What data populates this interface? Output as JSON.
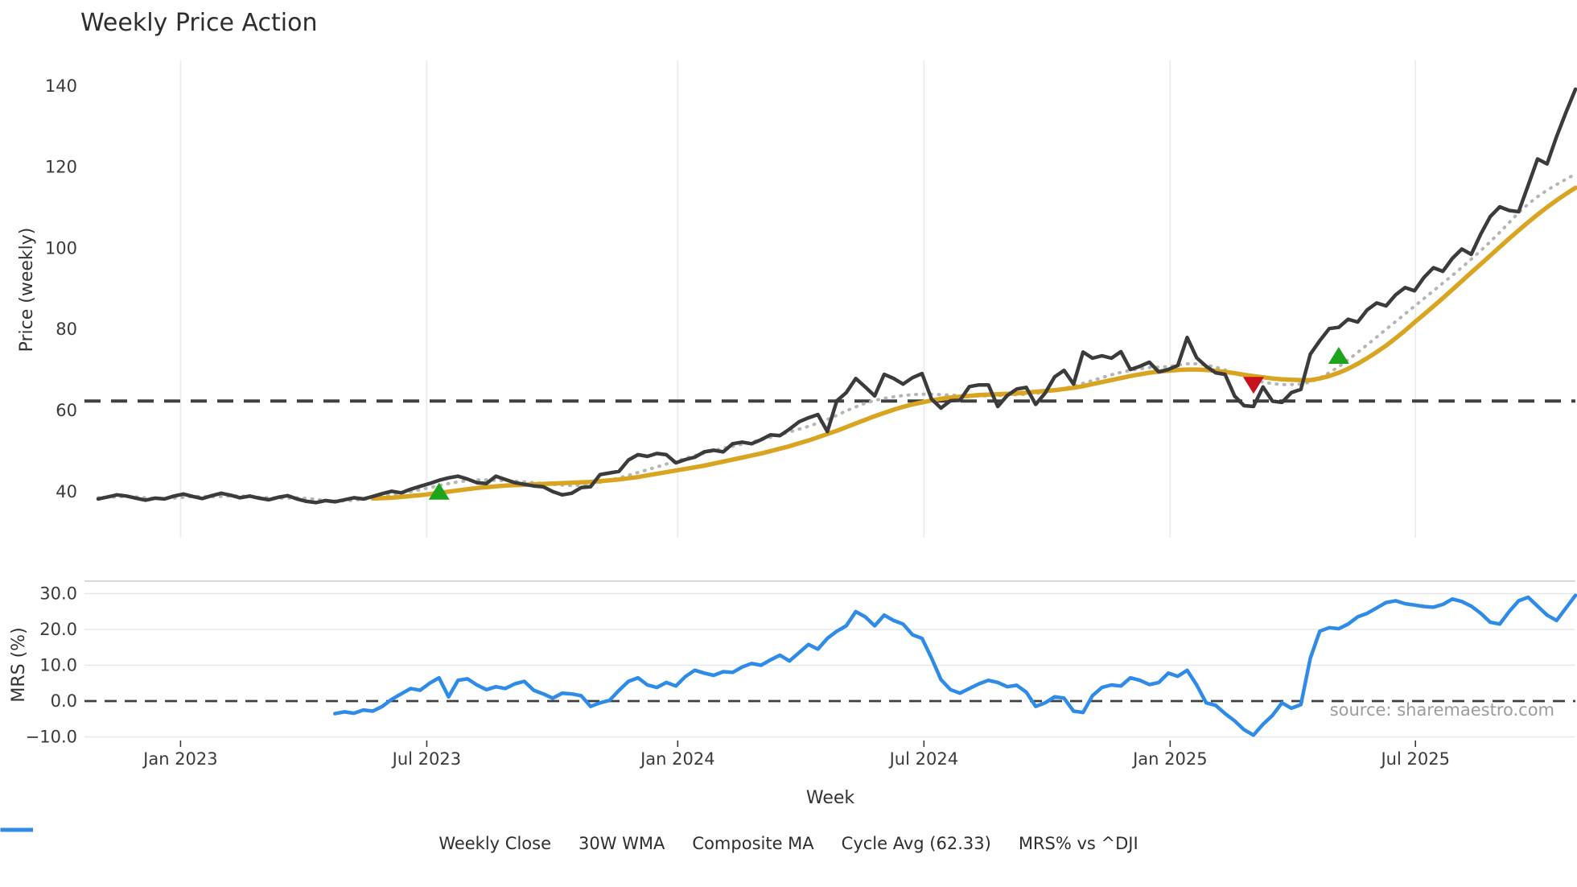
{
  "title": "Weekly Price Action",
  "source_note": "source: sharemaestro.com",
  "colors": {
    "price": "#3b3b3b",
    "wma": "#D9A521",
    "composite": "#b5b5b5",
    "cycle_avg": "#404040",
    "mrs": "#2E8BE8",
    "buy_marker": "#1CA41C",
    "sell_marker": "#C8101E",
    "grid_vertical": "#ebebeb",
    "grid_horizontal": "#e8e8ee",
    "spine": "#cbcbcb",
    "tick_text": "#3a3a3a",
    "source_text": "#9b9b9b",
    "background": "#ffffff"
  },
  "legend": [
    {
      "label": "Weekly Close",
      "color": "#3b3b3b",
      "style": "solid"
    },
    {
      "label": "30W WMA",
      "color": "#D9A521",
      "style": "solid"
    },
    {
      "label": "Composite MA",
      "color": "#b5b5b5",
      "style": "dotted"
    },
    {
      "label": "Cycle Avg (62.33)",
      "color": "#404040",
      "style": "dashed"
    },
    {
      "label": "MRS% vs ^DJI",
      "color": "#2E8BE8",
      "style": "solid"
    }
  ],
  "chart_data": [
    {
      "type": "line",
      "panel": "price",
      "title": "Weekly Price Action",
      "ylabel": "Price (weekly)",
      "xlabel": "Week",
      "ylim": [
        28,
        148
      ],
      "yticks": [
        40,
        60,
        80,
        100,
        120,
        140
      ],
      "ytick_labels": [
        "40",
        "60",
        "80",
        "100",
        "120",
        "140"
      ],
      "xtick_labels": [
        "Jan 2023",
        "Jul 2023",
        "Jan 2024",
        "Jul 2024",
        "Jan 2025",
        "Jul 2025"
      ],
      "xtick_index": [
        8.7,
        34.7,
        61.2,
        87.2,
        113.2,
        139.1
      ],
      "grid": "x-only",
      "legend_position": "bottom-center",
      "series": [
        {
          "name": "Weekly Close",
          "color": "#3b3b3b",
          "style": "solid",
          "width": 4.5,
          "start_index": 0,
          "values": [
            38.2,
            38.7,
            39.2,
            38.9,
            38.4,
            37.9,
            38.4,
            38.2,
            38.9,
            39.4,
            38.8,
            38.3,
            39.0,
            39.6,
            39.1,
            38.5,
            38.9,
            38.4,
            38.0,
            38.6,
            39.0,
            38.2,
            37.6,
            37.3,
            37.8,
            37.5,
            38.0,
            38.5,
            38.2,
            38.8,
            39.5,
            40.1,
            39.7,
            40.6,
            41.3,
            42.0,
            42.8,
            43.4,
            43.8,
            43.1,
            42.2,
            42.0,
            43.8,
            43.0,
            42.2,
            41.8,
            41.4,
            41.2,
            40.0,
            39.2,
            39.6,
            41.0,
            41.2,
            44.2,
            44.6,
            45.0,
            47.8,
            49.1,
            48.7,
            49.4,
            49.1,
            47.1,
            47.9,
            48.5,
            49.8,
            50.2,
            49.8,
            51.8,
            52.2,
            51.8,
            52.8,
            54.0,
            53.8,
            55.4,
            57.2,
            58.2,
            59.0,
            54.8,
            62.4,
            64.4,
            67.9,
            65.8,
            63.6,
            68.9,
            67.9,
            66.5,
            68.1,
            69.1,
            62.8,
            60.6,
            62.4,
            62.5,
            65.9,
            66.3,
            66.3,
            61.0,
            63.7,
            65.3,
            65.7,
            61.5,
            64.3,
            68.3,
            69.9,
            66.5,
            74.4,
            72.9,
            73.5,
            72.9,
            74.5,
            70.1,
            70.9,
            71.9,
            69.5,
            70.1,
            71.1,
            78.0,
            73.0,
            70.9,
            69.3,
            68.9,
            63.6,
            61.2,
            61.0,
            65.8,
            62.3,
            62.0,
            64.4,
            65.2,
            73.9,
            77.2,
            80.2,
            80.5,
            82.5,
            81.8,
            84.8,
            86.5,
            85.8,
            88.5,
            90.3,
            89.5,
            92.8,
            95.2,
            94.3,
            97.5,
            99.8,
            98.5,
            103.5,
            107.8,
            110.2,
            109.3,
            109.0,
            115.5,
            122.0,
            120.8,
            127.5,
            133.5,
            139.2
          ]
        },
        {
          "name": "30W WMA",
          "color": "#D9A521",
          "style": "solid",
          "width": 5.5,
          "start_index": 29,
          "values": [
            38.3,
            38.4,
            38.5,
            38.7,
            38.9,
            39.1,
            39.4,
            39.7,
            40.0,
            40.3,
            40.6,
            40.9,
            41.1,
            41.3,
            41.5,
            41.6,
            41.7,
            41.8,
            41.9,
            42.0,
            42.1,
            42.2,
            42.3,
            42.4,
            42.6,
            42.8,
            43.0,
            43.3,
            43.6,
            44.0,
            44.4,
            44.8,
            45.2,
            45.6,
            46.0,
            46.4,
            46.9,
            47.4,
            47.9,
            48.4,
            48.9,
            49.4,
            50.0,
            50.6,
            51.2,
            51.9,
            52.6,
            53.4,
            54.2,
            55.0,
            55.9,
            56.8,
            57.7,
            58.6,
            59.4,
            60.2,
            60.9,
            61.5,
            62.0,
            62.5,
            62.9,
            63.2,
            63.4,
            63.6,
            63.8,
            63.9,
            64.0,
            64.1,
            64.2,
            64.4,
            64.6,
            64.8,
            65.0,
            65.3,
            65.6,
            66.0,
            66.5,
            67.0,
            67.5,
            68.0,
            68.5,
            68.9,
            69.3,
            69.6,
            69.8,
            70.0,
            70.1,
            70.1,
            70.0,
            69.8,
            69.5,
            69.2,
            68.8,
            68.5,
            68.2,
            67.9,
            67.7,
            67.6,
            67.5,
            67.5,
            67.9,
            68.5,
            69.3,
            70.3,
            71.5,
            72.9,
            74.4,
            76.0,
            77.8,
            79.7,
            81.7,
            83.7,
            85.7,
            87.7,
            89.8,
            91.9,
            94.0,
            96.1,
            98.2,
            100.3,
            102.4,
            104.4,
            106.4,
            108.3,
            110.1,
            111.8,
            113.4,
            114.9
          ]
        },
        {
          "name": "Composite MA",
          "color": "#b5b5b5",
          "style": "dotted",
          "width": 4,
          "start_index": 0,
          "values": [
            38.5,
            38.6,
            38.7,
            38.8,
            38.7,
            38.5,
            38.3,
            38.3,
            38.4,
            38.6,
            38.8,
            38.8,
            38.7,
            38.8,
            38.9,
            38.9,
            38.8,
            38.6,
            38.5,
            38.4,
            38.4,
            38.5,
            38.3,
            38.1,
            37.8,
            37.7,
            37.7,
            37.9,
            38.1,
            38.4,
            38.8,
            39.2,
            39.6,
            40.0,
            40.5,
            41.0,
            41.5,
            42.0,
            42.4,
            42.7,
            42.9,
            42.9,
            42.8,
            42.7,
            42.6,
            42.4,
            42.2,
            42.0,
            41.8,
            41.6,
            41.5,
            41.6,
            41.9,
            42.3,
            42.8,
            43.4,
            44.0,
            44.7,
            45.4,
            46.1,
            46.8,
            47.5,
            48.2,
            48.9,
            49.5,
            50.1,
            50.7,
            51.2,
            51.7,
            52.2,
            52.8,
            53.4,
            54.0,
            54.7,
            55.4,
            56.1,
            56.9,
            57.8,
            58.8,
            59.9,
            60.9,
            61.8,
            62.5,
            63.0,
            63.4,
            63.7,
            63.9,
            64.0,
            64.0,
            63.9,
            63.8,
            63.7,
            63.6,
            63.6,
            63.6,
            63.7,
            63.8,
            63.9,
            64.0,
            64.2,
            64.5,
            64.9,
            65.4,
            66.0,
            66.7,
            67.4,
            68.1,
            68.8,
            69.4,
            69.9,
            70.3,
            70.6,
            70.7,
            70.8,
            71.2,
            71.5,
            71.5,
            71.2,
            70.7,
            70.0,
            69.2,
            68.4,
            67.6,
            67.0,
            66.6,
            66.4,
            66.4,
            66.5,
            67.0,
            68.0,
            69.3,
            70.8,
            72.5,
            74.3,
            76.2,
            78.1,
            80.0,
            81.9,
            83.8,
            85.7,
            87.6,
            89.5,
            91.4,
            93.3,
            95.3,
            97.3,
            99.4,
            101.6,
            103.9,
            106.3,
            108.8,
            110.9,
            112.7,
            114.3,
            115.7,
            117.0,
            118.3
          ]
        },
        {
          "name": "Cycle Avg (62.33)",
          "color": "#404040",
          "style": "dashed",
          "width": 4,
          "constant": 62.33
        }
      ],
      "markers": [
        {
          "name": "buy-signal",
          "shape": "triangle-up",
          "color": "#1CA41C",
          "index": 36,
          "value": 39.8
        },
        {
          "name": "sell-signal",
          "shape": "triangle-down",
          "color": "#C8101E",
          "index": 122,
          "value": 66.5
        },
        {
          "name": "buy-signal",
          "shape": "triangle-up",
          "color": "#1CA41C",
          "index": 131,
          "value": 73.3
        }
      ]
    },
    {
      "type": "line",
      "panel": "mrs",
      "ylabel": "MRS (%)",
      "ylim": [
        -11,
        33.5
      ],
      "yticks": [
        -10,
        0,
        10,
        20,
        30
      ],
      "ytick_labels": [
        "−10.0",
        "0.0",
        "10.0",
        "20.0",
        "30.0"
      ],
      "grid": "y-only",
      "series": [
        {
          "name": "MRS% vs ^DJI",
          "color": "#2E8BE8",
          "style": "solid",
          "width": 4.5,
          "start_index": 25,
          "values": [
            -3.5,
            -3.0,
            -3.4,
            -2.5,
            -2.8,
            -1.5,
            0.5,
            2.0,
            3.5,
            3.0,
            5.0,
            6.5,
            1.2,
            5.8,
            6.2,
            4.5,
            3.2,
            4.0,
            3.5,
            4.8,
            5.5,
            3.0,
            2.0,
            0.8,
            2.2,
            2.0,
            1.5,
            -1.5,
            -0.5,
            0.2,
            3.0,
            5.5,
            6.5,
            4.5,
            3.8,
            5.2,
            4.2,
            6.8,
            8.6,
            7.8,
            7.2,
            8.2,
            8.0,
            9.5,
            10.5,
            10.0,
            11.5,
            12.8,
            11.2,
            13.5,
            15.8,
            14.5,
            17.5,
            19.5,
            21.0,
            25.0,
            23.5,
            21.0,
            24.0,
            22.5,
            21.5,
            18.5,
            17.5,
            12.0,
            6.0,
            3.2,
            2.2,
            3.5,
            4.8,
            5.8,
            5.2,
            4.0,
            4.4,
            2.5,
            -1.5,
            -0.5,
            1.2,
            0.8,
            -2.8,
            -3.2,
            1.5,
            3.8,
            4.5,
            4.2,
            6.5,
            5.8,
            4.6,
            5.2,
            7.8,
            6.9,
            8.6,
            4.5,
            -0.5,
            -1.2,
            -3.5,
            -5.5,
            -8.0,
            -9.5,
            -6.5,
            -4.0,
            -0.5,
            -2.0,
            -1.0,
            12.0,
            19.5,
            20.5,
            20.2,
            21.5,
            23.5,
            24.5,
            26.0,
            27.5,
            28.0,
            27.2,
            26.8,
            26.4,
            26.2,
            27.0,
            28.5,
            27.8,
            26.5,
            24.5,
            22.0,
            21.5,
            25.0,
            28.0,
            29.0,
            26.5,
            24.0,
            22.5,
            26.0,
            29.5
          ]
        },
        {
          "name": "zero-line",
          "color": "#3f3f3f",
          "style": "dashed",
          "width": 2.8,
          "constant": 0
        }
      ],
      "annotations": [
        {
          "name": "source-note",
          "text": "source: sharemaestro.com",
          "position": "bottom-right"
        }
      ]
    }
  ]
}
